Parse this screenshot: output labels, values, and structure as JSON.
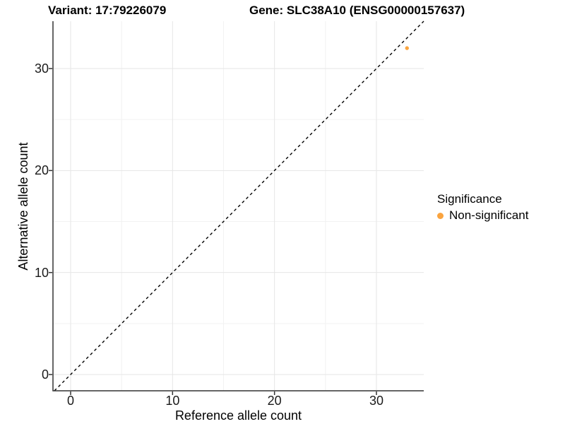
{
  "figure": {
    "title_variant": "Variant: 17:79226079",
    "title_gene": "Gene: SLC38A10 (ENSG00000157637)"
  },
  "axes": {
    "x": {
      "label": "Reference allele count",
      "tick_labels": [
        "0",
        "10",
        "20",
        "30"
      ]
    },
    "y": {
      "label": "Alternative allele count",
      "tick_labels": [
        "0",
        "10",
        "20",
        "30"
      ]
    }
  },
  "legend": {
    "title": "Significance",
    "items": [
      {
        "label": "Non-significant",
        "color": "#FAA43F"
      }
    ]
  },
  "colors": {
    "point": "#FAA43F",
    "grid_major": "#e6e6e6",
    "grid_minor": "#f2f2f2",
    "axis_line": "#333333",
    "dashed_line": "#000000"
  },
  "chart_data": {
    "type": "scatter",
    "title": "Variant: 17:79226079  |  Gene: SLC38A10 (ENSG00000157637)",
    "xlabel": "Reference allele count",
    "ylabel": "Alternative allele count",
    "xlim": [
      -1.7,
      34.6
    ],
    "ylim": [
      -1.6,
      34.6
    ],
    "xticks": [
      0,
      10,
      20,
      30
    ],
    "yticks": [
      0,
      10,
      20,
      30
    ],
    "x_minor_ticks": [
      5,
      15,
      25
    ],
    "y_minor_ticks": [
      5,
      15,
      25
    ],
    "grid": true,
    "legend_position": "right",
    "reference_line": {
      "type": "identity y=x",
      "style": "dashed",
      "color": "#000000"
    },
    "series": [
      {
        "name": "Non-significant",
        "color": "#FAA43F",
        "points": [
          {
            "x": 33,
            "y": 32
          }
        ]
      }
    ]
  }
}
